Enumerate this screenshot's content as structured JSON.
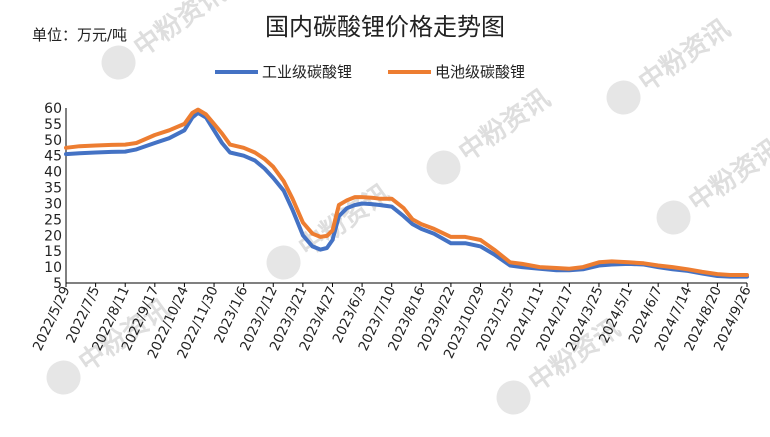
{
  "unit_label": "单位：万元/吨",
  "colors": {
    "industrial": "#4472C4",
    "battery": "#ED7D31",
    "axis": "#000000",
    "watermark": "#dedede"
  },
  "watermark_text": "中粉资讯",
  "chart_data": {
    "type": "line",
    "title": "国内碳酸锂价格走势图",
    "ylim": [
      5,
      60
    ],
    "yticks": [
      5,
      10,
      15,
      20,
      25,
      30,
      35,
      40,
      45,
      50,
      55,
      60
    ],
    "grid": false,
    "legend_position": "top",
    "x_tick_labels": [
      "2022/5/29",
      "2022/7/5",
      "2022/8/11",
      "2022/9/17",
      "2022/10/24",
      "2022/11/30",
      "2023/1/6",
      "2023/2/12",
      "2023/3/21",
      "2023/4/27",
      "2023/6/3",
      "2023/7/10",
      "2023/8/16",
      "2023/9/22",
      "2023/10/29",
      "2023/12/5",
      "2024/1/11",
      "2024/2/17",
      "2024/3/25",
      "2024/5/1",
      "2024/6/7",
      "2024/7/14",
      "2024/8/20",
      "2024/9/26"
    ],
    "x": [
      "2022/5/29",
      "2022/6/15",
      "2022/7/5",
      "2022/7/25",
      "2022/8/11",
      "2022/8/25",
      "2022/9/17",
      "2022/10/5",
      "2022/10/24",
      "2022/11/3",
      "2022/11/10",
      "2022/11/20",
      "2022/11/30",
      "2022/12/10",
      "2022/12/20",
      "2023/1/6",
      "2023/1/20",
      "2023/2/1",
      "2023/2/12",
      "2023/2/25",
      "2023/3/8",
      "2023/3/21",
      "2023/4/2",
      "2023/4/12",
      "2023/4/20",
      "2023/4/27",
      "2023/5/5",
      "2023/5/15",
      "2023/5/25",
      "2023/6/3",
      "2023/6/15",
      "2023/6/25",
      "2023/7/10",
      "2023/7/25",
      "2023/8/5",
      "2023/8/16",
      "2023/9/1",
      "2023/9/22",
      "2023/10/10",
      "2023/10/29",
      "2023/11/15",
      "2023/12/5",
      "2023/12/20",
      "2024/1/11",
      "2024/2/1",
      "2024/2/17",
      "2024/3/5",
      "2024/3/25",
      "2024/4/10",
      "2024/5/1",
      "2024/5/20",
      "2024/6/7",
      "2024/6/25",
      "2024/7/14",
      "2024/8/1",
      "2024/8/20",
      "2024/9/5",
      "2024/9/26"
    ],
    "series": [
      {
        "name": "工业级碳酸锂",
        "values": [
          45.5,
          45.8,
          46.0,
          46.2,
          46.3,
          47.0,
          49.0,
          50.5,
          53.0,
          57.0,
          58.5,
          57.0,
          53.0,
          49.0,
          46.0,
          45.0,
          43.5,
          41.0,
          38.0,
          34.0,
          28.0,
          20.0,
          16.5,
          15.5,
          16.0,
          18.5,
          26.0,
          28.5,
          29.5,
          30.0,
          29.8,
          29.5,
          29.0,
          26.0,
          23.5,
          22.0,
          20.5,
          17.5,
          17.5,
          16.5,
          14.0,
          10.5,
          10.0,
          9.5,
          9.0,
          9.0,
          9.3,
          10.5,
          10.8,
          11.0,
          10.8,
          10.0,
          9.3,
          8.8,
          8.0,
          7.2,
          7.0,
          7.0
        ]
      },
      {
        "name": "电池级碳酸锂",
        "values": [
          47.5,
          48.0,
          48.2,
          48.4,
          48.5,
          49.0,
          51.5,
          53.0,
          55.0,
          58.5,
          59.5,
          58.0,
          55.0,
          52.0,
          48.5,
          47.5,
          46.0,
          44.0,
          41.5,
          37.0,
          31.5,
          24.0,
          20.5,
          19.5,
          19.8,
          21.5,
          29.5,
          31.0,
          32.0,
          32.0,
          31.8,
          31.5,
          31.5,
          28.5,
          25.0,
          23.5,
          22.0,
          19.5,
          19.5,
          18.5,
          15.5,
          11.5,
          11.0,
          10.0,
          9.7,
          9.5,
          10.0,
          11.5,
          11.8,
          11.5,
          11.2,
          10.5,
          10.0,
          9.3,
          8.5,
          7.8,
          7.5,
          7.5
        ]
      }
    ]
  }
}
